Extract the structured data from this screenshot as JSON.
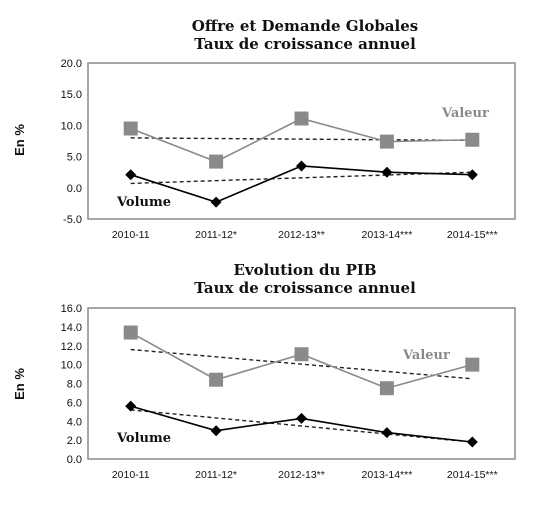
{
  "chart_data": [
    {
      "type": "line",
      "title": "Offre et Demande Globales",
      "subtitle": "Taux de croissance annuel",
      "ylabel": "En %",
      "categories": [
        "2010-11",
        "2011-12*",
        "2012-13**",
        "2013-14***",
        "2014-15***"
      ],
      "ylim": [
        -5,
        20
      ],
      "yticks": [
        "20.0",
        "15.0",
        "10.0",
        "5.0",
        "0.0",
        "-5.0"
      ],
      "series": [
        {
          "name": "Valeur",
          "values": [
            9.5,
            4.2,
            11.1,
            7.4,
            7.7
          ],
          "color": "#8a8a8a",
          "marker": "square",
          "trend": [
            8.0,
            7.6
          ]
        },
        {
          "name": "Volume",
          "values": [
            2.1,
            -2.3,
            3.5,
            2.5,
            2.1
          ],
          "color": "#000000",
          "marker": "diamond",
          "trend": [
            0.7,
            2.5
          ]
        }
      ]
    },
    {
      "type": "line",
      "title": "Evolution du PIB",
      "subtitle": "Taux de croissance annuel",
      "ylabel": "En %",
      "categories": [
        "2010-11",
        "2011-12*",
        "2012-13**",
        "2013-14***",
        "2014-15***"
      ],
      "ylim": [
        0,
        16
      ],
      "yticks": [
        "16.0",
        "14.0",
        "12.0",
        "10.0",
        "8.0",
        "6.0",
        "4.0",
        "2.0",
        "0.0"
      ],
      "series": [
        {
          "name": "Valeur",
          "values": [
            13.4,
            8.4,
            11.1,
            7.5,
            10.0
          ],
          "color": "#8a8a8a",
          "marker": "square",
          "trend": [
            11.6,
            8.5
          ]
        },
        {
          "name": "Volume",
          "values": [
            5.6,
            3.0,
            4.3,
            2.8,
            1.8
          ],
          "color": "#000000",
          "marker": "diamond",
          "trend": [
            5.2,
            1.8
          ]
        }
      ]
    }
  ]
}
